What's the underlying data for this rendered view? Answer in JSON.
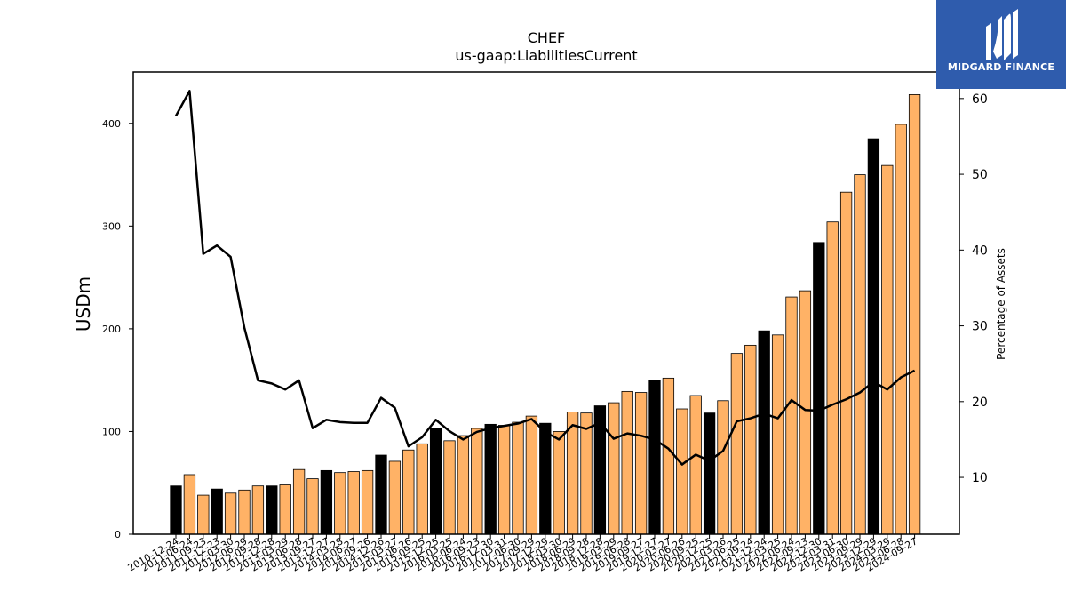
{
  "chart_data": {
    "type": "bar",
    "title": "CHEF",
    "subtitle": "us-gaap:LiabilitiesCurrent",
    "ylabel": "USDm",
    "y2label": "Percentage of Assets",
    "ylim": [
      0,
      450
    ],
    "y2lim": [
      2.5,
      63.5
    ],
    "yticks": [
      0,
      100,
      200,
      300,
      400
    ],
    "y2ticks": [
      10,
      20,
      30,
      40,
      50,
      60
    ],
    "categories": [
      "2010-12-24",
      "2011-06-24",
      "2011-09-23",
      "2011-12-23",
      "2012-03-30",
      "2012-06-29",
      "2012-09-28",
      "2012-12-28",
      "2013-03-29",
      "2013-06-28",
      "2013-09-27",
      "2013-12-27",
      "2014-03-28",
      "2014-06-27",
      "2014-09-26",
      "2014-12-26",
      "2015-03-27",
      "2015-06-26",
      "2015-09-25",
      "2015-12-25",
      "2016-03-25",
      "2016-06-24",
      "2016-09-23",
      "2016-12-30",
      "2017-03-31",
      "2017-06-30",
      "2017-09-29",
      "2017-12-29",
      "2018-03-30",
      "2018-06-29",
      "2018-09-28",
      "2018-12-28",
      "2019-03-29",
      "2019-06-28",
      "2019-09-27",
      "2019-12-27",
      "2020-03-27",
      "2020-06-26",
      "2020-09-25",
      "2020-12-25",
      "2021-03-26",
      "2021-06-25",
      "2021-09-24",
      "2021-12-24",
      "2022-03-25",
      "2022-06-24",
      "2022-09-23",
      "2022-12-30",
      "2023-03-31",
      "2023-06-30",
      "2023-09-29",
      "2023-12-29",
      "2024-03-29",
      "2024-06-28",
      "2024-09-27"
    ],
    "series": [
      {
        "values": [
          47,
          58,
          38,
          44,
          40,
          43,
          47,
          47,
          48,
          63,
          54,
          62,
          60,
          61,
          62,
          77,
          71,
          82,
          88,
          103,
          91,
          96,
          103,
          107,
          106,
          109,
          115,
          108,
          100,
          119,
          118,
          125,
          128,
          139,
          138,
          150,
          152,
          122,
          135,
          118,
          130,
          176,
          184,
          198,
          194,
          231,
          237,
          284,
          304,
          333,
          350,
          385,
          359,
          399,
          428
        ],
        "year_end": [
          true,
          false,
          false,
          true,
          false,
          false,
          false,
          true,
          false,
          false,
          false,
          true,
          false,
          false,
          false,
          true,
          false,
          false,
          false,
          true,
          false,
          false,
          false,
          true,
          false,
          false,
          false,
          true,
          false,
          false,
          false,
          true,
          false,
          false,
          false,
          true,
          false,
          false,
          false,
          true,
          false,
          false,
          false,
          true,
          false,
          false,
          false,
          true,
          false,
          false,
          false,
          true,
          false,
          false,
          false
        ]
      },
      {
        "values": [
          57.7,
          61.0,
          39.5,
          40.6,
          39.1,
          29.8,
          22.8,
          22.4,
          21.6,
          22.8,
          16.5,
          17.6,
          17.3,
          17.2,
          17.2,
          20.5,
          19.2,
          14.1,
          15.3,
          17.6,
          16.1,
          15.0,
          16.0,
          16.5,
          16.8,
          17.1,
          17.7,
          16.0,
          15.0,
          16.9,
          16.4,
          17.2,
          15.1,
          15.8,
          15.5,
          15.0,
          13.8,
          11.7,
          13.0,
          12.2,
          13.5,
          17.4,
          17.8,
          18.4,
          17.8,
          20.2,
          18.9,
          18.8,
          19.6,
          20.3,
          21.2,
          22.6,
          21.6,
          23.2,
          24.1
        ]
      }
    ],
    "colors": {
      "bar": "#ffb266",
      "bar_year_end": "#000000",
      "line": "#000000"
    }
  },
  "logo": {
    "text": "MIDGARD FINANCE"
  }
}
